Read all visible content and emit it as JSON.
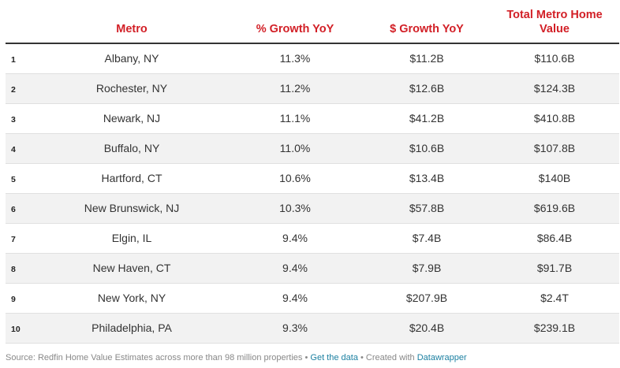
{
  "chart_data": {
    "type": "table",
    "columns": [
      "",
      "Metro",
      "% Growth YoY",
      "$ Growth YoY",
      "Total Metro Home Value"
    ],
    "rows": [
      {
        "rank": "1",
        "metro": "Albany, NY",
        "pct": "11.3%",
        "usd": "$11.2B",
        "total": "$110.6B"
      },
      {
        "rank": "2",
        "metro": "Rochester, NY",
        "pct": "11.2%",
        "usd": "$12.6B",
        "total": "$124.3B"
      },
      {
        "rank": "3",
        "metro": "Newark, NJ",
        "pct": "11.1%",
        "usd": "$41.2B",
        "total": "$410.8B"
      },
      {
        "rank": "4",
        "metro": "Buffalo, NY",
        "pct": "11.0%",
        "usd": "$10.6B",
        "total": "$107.8B"
      },
      {
        "rank": "5",
        "metro": "Hartford, CT",
        "pct": "10.6%",
        "usd": "$13.4B",
        "total": "$140B"
      },
      {
        "rank": "6",
        "metro": "New Brunswick, NJ",
        "pct": "10.3%",
        "usd": "$57.8B",
        "total": "$619.6B"
      },
      {
        "rank": "7",
        "metro": "Elgin, IL",
        "pct": "9.4%",
        "usd": "$7.4B",
        "total": "$86.4B"
      },
      {
        "rank": "8",
        "metro": "New Haven, CT",
        "pct": "9.4%",
        "usd": "$7.9B",
        "total": "$91.7B"
      },
      {
        "rank": "9",
        "metro": "New York, NY",
        "pct": "9.4%",
        "usd": "$207.9B",
        "total": "$2.4T"
      },
      {
        "rank": "10",
        "metro": "Philadelphia, PA",
        "pct": "9.3%",
        "usd": "$20.4B",
        "total": "$239.1B"
      }
    ]
  },
  "header": {
    "metro": "Metro",
    "pct": "% Growth YoY",
    "usd": "$ Growth YoY",
    "total_line1": "Total Metro Home",
    "total_line2": "Value"
  },
  "footer": {
    "source": "Source: Redfin Home Value Estimates across more than 98 million properties",
    "sep1": " • ",
    "get_data": "Get the data",
    "sep2": " • Created with ",
    "datawrapper": "Datawrapper"
  },
  "colors": {
    "header_text": "#d21f26",
    "link": "#1d81a2",
    "alt_row": "#f2f2f2"
  }
}
